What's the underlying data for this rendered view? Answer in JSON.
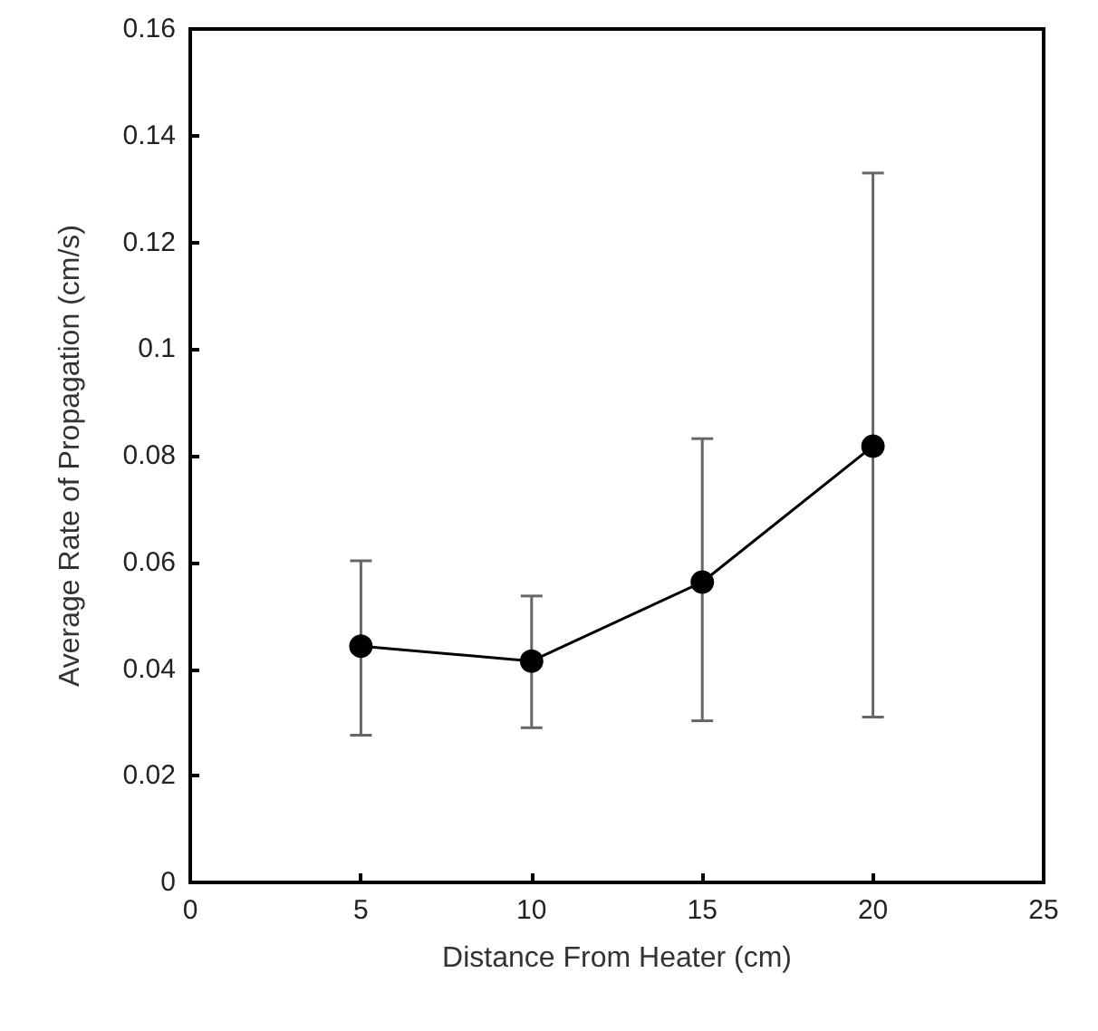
{
  "chart_data": {
    "type": "line",
    "xlabel": "Distance From Heater (cm)",
    "ylabel": "Average Rate of Propagation (cm/s)",
    "x": [
      5,
      10,
      15,
      20
    ],
    "series": [
      {
        "color": "#000000",
        "values": [
          0.0443,
          0.0415,
          0.0563,
          0.0818
        ],
        "errors": [
          [
            0.0276,
            0.0603
          ],
          [
            0.029,
            0.0537
          ],
          [
            0.0303,
            0.0832
          ],
          [
            0.031,
            0.133
          ]
        ]
      }
    ],
    "xlim": [
      0,
      25
    ],
    "xticks": [
      0,
      5,
      10,
      15,
      20,
      25
    ],
    "ylim": [
      0,
      0.16
    ],
    "yticks": [
      0,
      0.02,
      0.04,
      0.06,
      0.08,
      0.1,
      0.12,
      0.14,
      0.16
    ],
    "grid": false,
    "marker": "circle",
    "line_style": "solid"
  }
}
